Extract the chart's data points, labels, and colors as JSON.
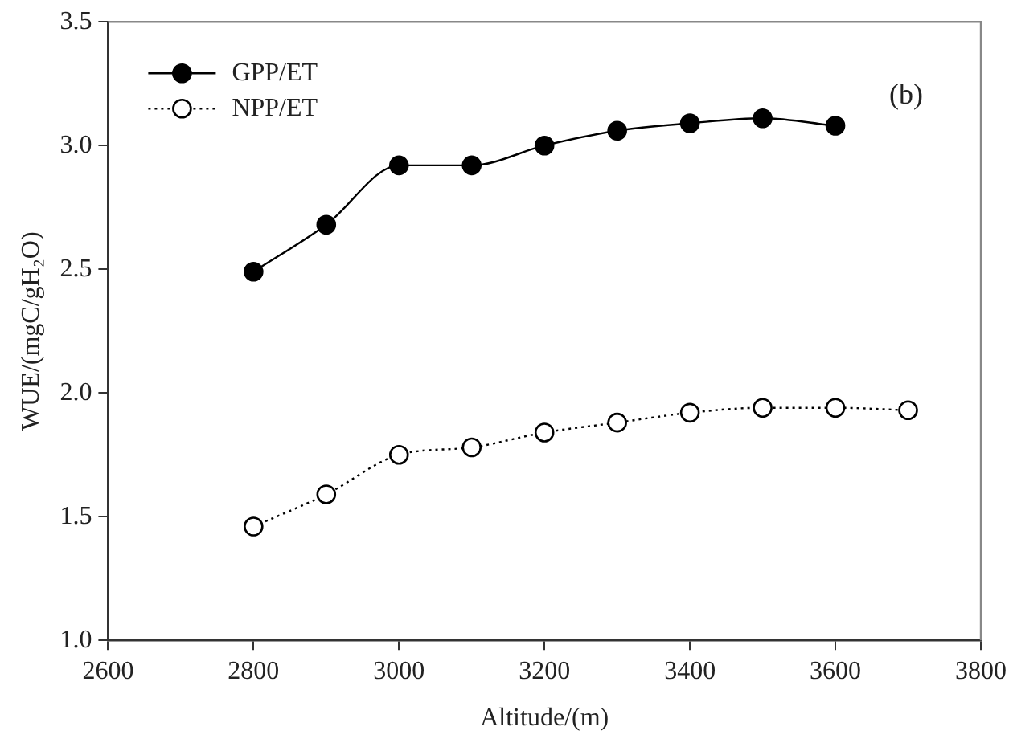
{
  "chart_data": {
    "type": "line",
    "xlabel": "Altitude/(m)",
    "ylabel": "WUE/(mgC/gH₂O)",
    "x": [
      2800,
      2900,
      3000,
      3100,
      3200,
      3300,
      3400,
      3500,
      3600,
      3700
    ],
    "series": [
      {
        "name": "GPP/ET",
        "color": "#000000",
        "values": [
          2.49,
          2.68,
          2.92,
          2.92,
          3.0,
          3.06,
          3.09,
          3.11,
          3.08,
          null
        ],
        "line_style": "solid"
      },
      {
        "name": "NPP/ET",
        "color": "#000000",
        "values": [
          1.46,
          1.59,
          1.75,
          1.78,
          1.84,
          1.88,
          1.92,
          1.94,
          1.94,
          1.93
        ],
        "line_style": "dotted"
      }
    ],
    "xlim": [
      2600,
      3800
    ],
    "xticks": [
      2600,
      2800,
      3000,
      3200,
      3400,
      3600,
      3800
    ],
    "ylim": [
      1.0,
      3.5
    ],
    "yticks": [
      {
        "value": 1.0,
        "label": "1.0"
      },
      {
        "value": 1.5,
        "label": "1.5"
      },
      {
        "value": 2.0,
        "label": "2.0"
      },
      {
        "value": 2.5,
        "label": "2.5"
      },
      {
        "value": 3.0,
        "label": "3.0"
      },
      {
        "value": 3.5,
        "label": "3.5"
      }
    ],
    "marker": "circle",
    "legend": "top left",
    "grid": false,
    "annotations": [
      "(b)"
    ]
  }
}
